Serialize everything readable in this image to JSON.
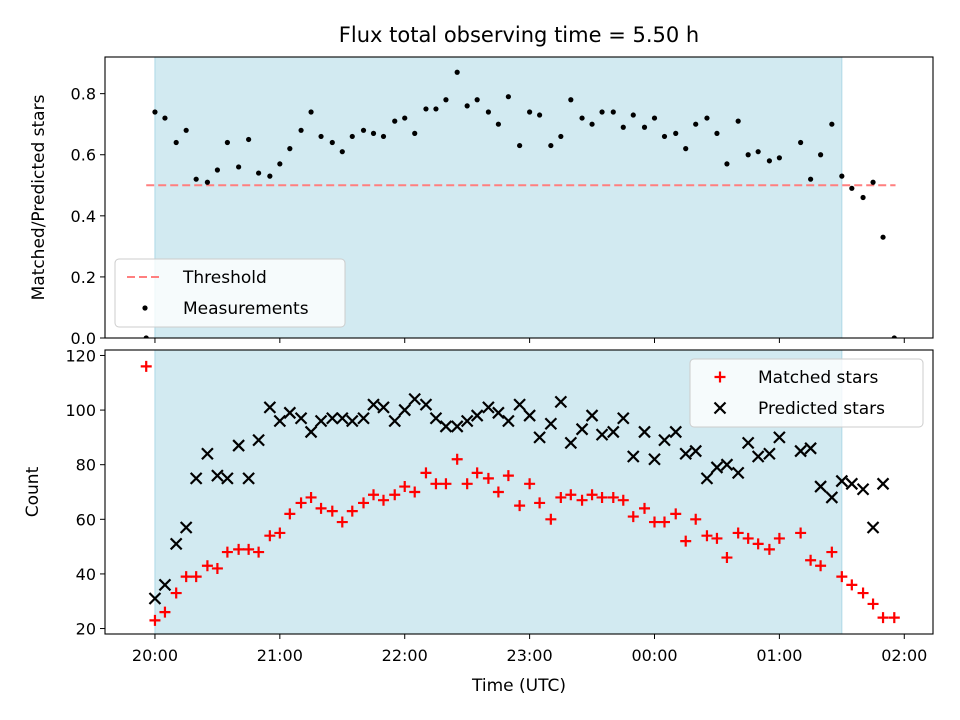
{
  "chart_data": {
    "type": "scatter",
    "title": "Flux total observing time = 5.50 h",
    "xlabel": "Time (UTC)",
    "x_tick_labels": [
      "20:00",
      "21:00",
      "22:00",
      "23:00",
      "00:00",
      "01:00",
      "02:00"
    ],
    "x_ticks_hours_utc": [
      20,
      21,
      22,
      23,
      24,
      25,
      26
    ],
    "x_range_hours_utc": [
      19.6,
      26.23
    ],
    "observing_window_hours_utc": [
      20.0,
      25.5
    ],
    "colors": {
      "window": "#add8e6",
      "threshold": "#ff7f7f",
      "measurements": "#000000",
      "matched": "#ff0000",
      "predicted": "#000000"
    },
    "panels": [
      {
        "id": "ratio",
        "ylabel": "Matched/Predicted stars",
        "ylim": [
          0,
          0.92
        ],
        "y_ticks": [
          0.0,
          0.2,
          0.4,
          0.6,
          0.8
        ],
        "y_tick_labels": [
          "0.0",
          "0.2",
          "0.4",
          "0.6",
          "0.8"
        ],
        "legend": {
          "position": "lower-left",
          "entries": [
            "Threshold",
            "Measurements"
          ]
        },
        "threshold": {
          "name": "Threshold",
          "y": 0.5,
          "x_range": [
            19.93,
            25.93
          ]
        },
        "series": [
          {
            "name": "Measurements",
            "marker": "dot",
            "x": [
              19.93,
              20.0,
              20.08,
              20.17,
              20.25,
              20.33,
              20.42,
              20.5,
              20.58,
              20.67,
              20.75,
              20.83,
              20.92,
              21.0,
              21.08,
              21.17,
              21.25,
              21.33,
              21.42,
              21.5,
              21.58,
              21.67,
              21.75,
              21.83,
              21.92,
              22.0,
              22.08,
              22.17,
              22.25,
              22.33,
              22.42,
              22.5,
              22.58,
              22.67,
              22.75,
              22.83,
              22.92,
              23.0,
              23.08,
              23.17,
              23.25,
              23.33,
              23.42,
              23.5,
              23.58,
              23.67,
              23.75,
              23.83,
              23.92,
              24.0,
              24.08,
              24.17,
              24.25,
              24.33,
              24.42,
              24.5,
              24.58,
              24.67,
              24.75,
              24.83,
              24.92,
              25.0,
              25.17,
              25.25,
              25.33,
              25.42,
              25.5,
              25.58,
              25.67,
              25.75,
              25.83,
              25.92
            ],
            "y": [
              0.0,
              0.74,
              0.72,
              0.64,
              0.68,
              0.52,
              0.51,
              0.55,
              0.64,
              0.56,
              0.65,
              0.54,
              0.53,
              0.57,
              0.62,
              0.68,
              0.74,
              0.66,
              0.64,
              0.61,
              0.66,
              0.68,
              0.67,
              0.66,
              0.71,
              0.72,
              0.67,
              0.75,
              0.75,
              0.78,
              0.87,
              0.76,
              0.78,
              0.74,
              0.7,
              0.79,
              0.63,
              0.74,
              0.73,
              0.63,
              0.66,
              0.78,
              0.72,
              0.7,
              0.74,
              0.74,
              0.69,
              0.73,
              0.69,
              0.72,
              0.66,
              0.67,
              0.62,
              0.7,
              0.72,
              0.67,
              0.57,
              0.71,
              0.6,
              0.61,
              0.58,
              0.59,
              0.64,
              0.52,
              0.6,
              0.7,
              0.53,
              0.49,
              0.46,
              0.51,
              0.33,
              0.0
            ]
          }
        ]
      },
      {
        "id": "counts",
        "ylabel": "Count",
        "ylim": [
          18,
          122
        ],
        "y_ticks": [
          20,
          40,
          60,
          80,
          100,
          120
        ],
        "y_tick_labels": [
          "20",
          "40",
          "60",
          "80",
          "100",
          "120"
        ],
        "legend": {
          "position": "upper-right",
          "entries": [
            "Matched stars",
            "Predicted stars"
          ]
        },
        "series": [
          {
            "name": "Matched stars",
            "marker": "plus",
            "x": [
              19.93,
              20.0,
              20.08,
              20.17,
              20.25,
              20.33,
              20.42,
              20.5,
              20.58,
              20.67,
              20.75,
              20.83,
              20.92,
              21.0,
              21.08,
              21.17,
              21.25,
              21.33,
              21.42,
              21.5,
              21.58,
              21.67,
              21.75,
              21.83,
              21.92,
              22.0,
              22.08,
              22.17,
              22.25,
              22.33,
              22.42,
              22.5,
              22.58,
              22.67,
              22.75,
              22.83,
              22.92,
              23.0,
              23.08,
              23.17,
              23.25,
              23.33,
              23.42,
              23.5,
              23.58,
              23.67,
              23.75,
              23.83,
              23.92,
              24.0,
              24.08,
              24.17,
              24.25,
              24.33,
              24.42,
              24.5,
              24.58,
              24.67,
              24.75,
              24.83,
              24.92,
              25.0,
              25.17,
              25.25,
              25.33,
              25.42,
              25.5,
              25.58,
              25.67,
              25.75,
              25.83,
              25.92
            ],
            "y": [
              116,
              23,
              26,
              33,
              39,
              39,
              43,
              42,
              48,
              49,
              49,
              48,
              54,
              55,
              62,
              66,
              68,
              64,
              63,
              59,
              63,
              66,
              69,
              67,
              69,
              72,
              70,
              77,
              73,
              73,
              82,
              73,
              77,
              75,
              70,
              76,
              65,
              73,
              66,
              60,
              68,
              69,
              67,
              69,
              68,
              68,
              67,
              61,
              64,
              59,
              59,
              62,
              52,
              60,
              54,
              53,
              46,
              55,
              53,
              51,
              49,
              53,
              55,
              45,
              43,
              48,
              39,
              36,
              33,
              29,
              24,
              24
            ]
          },
          {
            "name": "Predicted stars",
            "marker": "x",
            "x": [
              20.0,
              20.08,
              20.17,
              20.25,
              20.33,
              20.42,
              20.5,
              20.58,
              20.67,
              20.75,
              20.83,
              20.92,
              21.0,
              21.08,
              21.17,
              21.25,
              21.33,
              21.42,
              21.5,
              21.58,
              21.67,
              21.75,
              21.83,
              21.92,
              22.0,
              22.08,
              22.17,
              22.25,
              22.33,
              22.42,
              22.5,
              22.58,
              22.67,
              22.75,
              22.83,
              22.92,
              23.0,
              23.08,
              23.17,
              23.25,
              23.33,
              23.42,
              23.5,
              23.58,
              23.67,
              23.75,
              23.83,
              23.92,
              24.0,
              24.08,
              24.17,
              24.25,
              24.33,
              24.42,
              24.5,
              24.58,
              24.67,
              24.75,
              24.83,
              24.92,
              25.0,
              25.17,
              25.25,
              25.33,
              25.42,
              25.5,
              25.58,
              25.67,
              25.75,
              25.83
            ],
            "y": [
              31,
              36,
              51,
              57,
              75,
              84,
              76,
              75,
              87,
              75,
              89,
              101,
              96,
              99,
              97,
              92,
              96,
              97,
              97,
              96,
              97,
              102,
              101,
              96,
              100,
              104,
              102,
              97,
              94,
              94,
              96,
              98,
              101,
              99,
              96,
              102,
              98,
              90,
              95,
              103,
              88,
              93,
              98,
              91,
              92,
              97,
              83,
              92,
              82,
              89,
              92,
              84,
              85,
              75,
              79,
              80,
              77,
              88,
              83,
              84,
              90,
              85,
              86,
              72,
              68,
              74,
              73,
              71,
              57,
              73
            ]
          }
        ]
      }
    ]
  }
}
